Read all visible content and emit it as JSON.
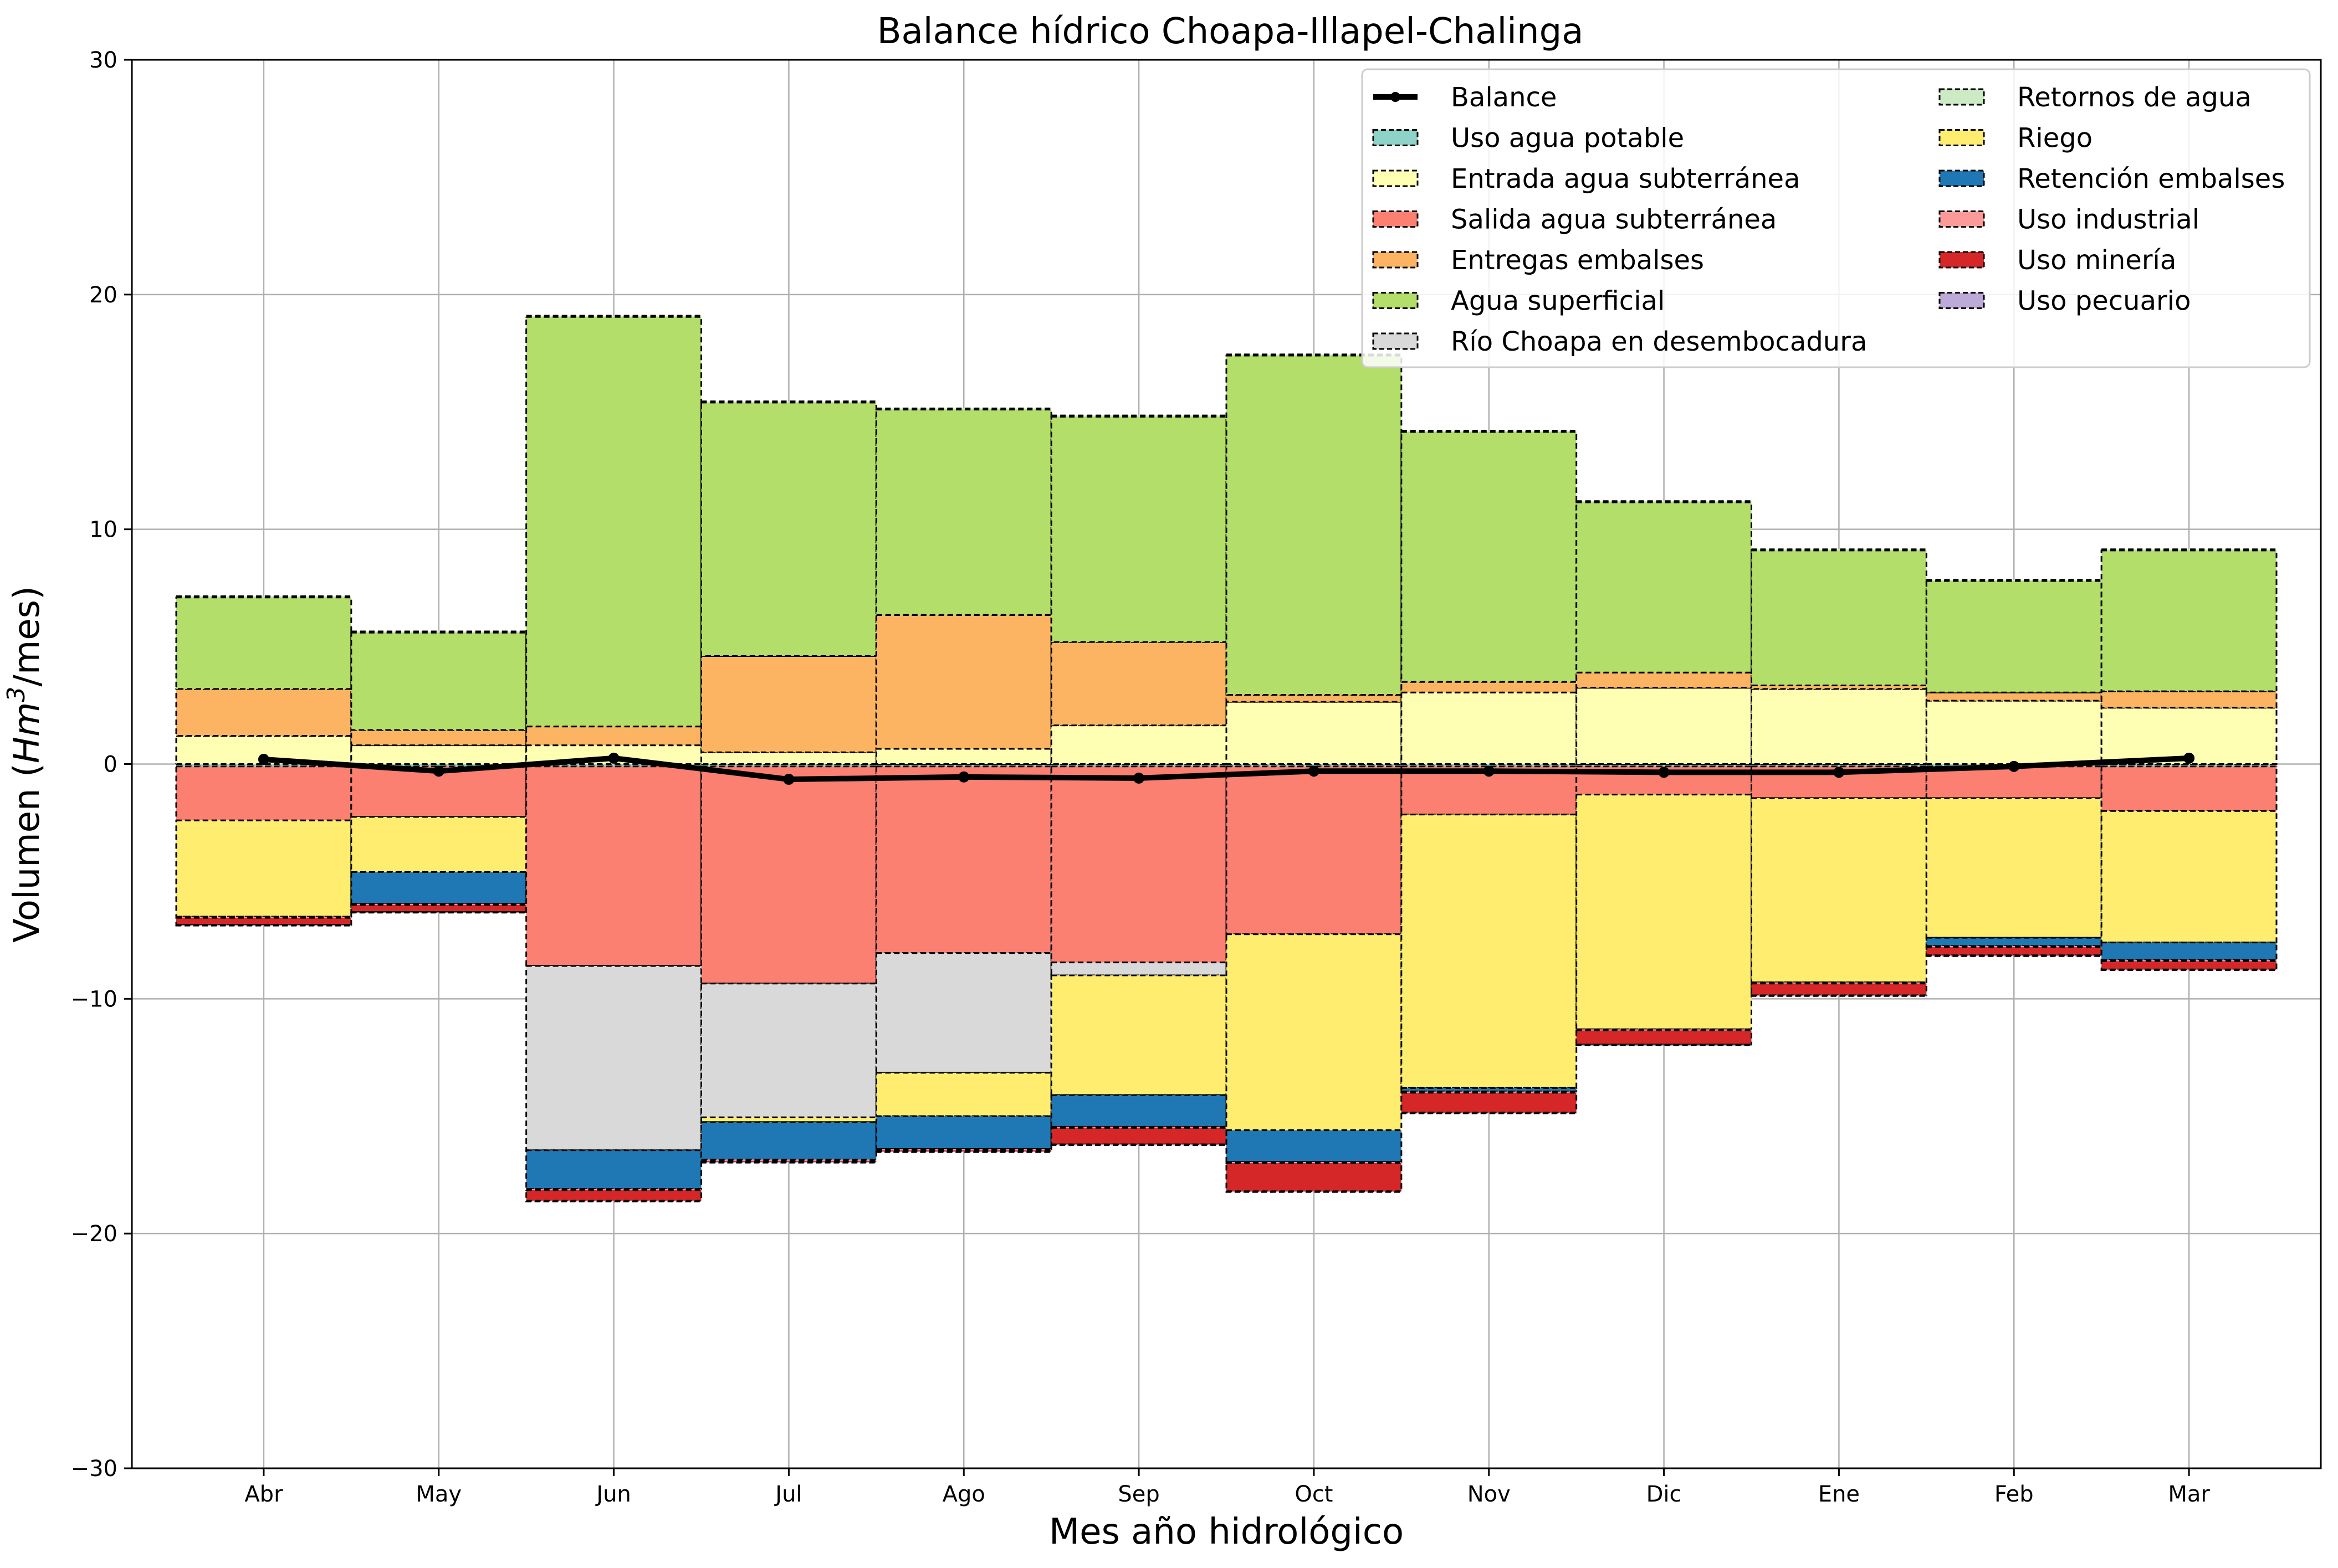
{
  "chart_data": {
    "type": "bar",
    "stacked": true,
    "title": "Balance hídrico Choapa-Illapel-Chalinga",
    "xlabel": "Mes año hidrológico",
    "ylabel_prefix": "Volumen (",
    "ylabel_var": "Hm",
    "ylabel_sup": "3",
    "ylabel_suffix": "/mes)",
    "ylim": [
      -30,
      30
    ],
    "yticks": [
      -30,
      -20,
      -10,
      0,
      10,
      20,
      30
    ],
    "ytick_labels": [
      "−30",
      "−20",
      "−10",
      "0",
      "10",
      "20",
      "30"
    ],
    "grid": true,
    "legend_position": "top-right",
    "categories": [
      "Abr",
      "May",
      "Jun",
      "Jul",
      "Ago",
      "Sep",
      "Oct",
      "Nov",
      "Dic",
      "Ene",
      "Feb",
      "Mar"
    ],
    "balance": {
      "name": "Balance",
      "color": "#000000",
      "values": [
        0.2,
        -0.3,
        0.25,
        -0.65,
        -0.55,
        -0.6,
        -0.3,
        -0.3,
        -0.35,
        -0.35,
        -0.1,
        0.25
      ]
    },
    "series": [
      {
        "name": "Uso agua potable",
        "color": "#8dd3c7",
        "values": [
          -0.1,
          -0.1,
          -0.1,
          -0.1,
          -0.1,
          -0.1,
          -0.1,
          -0.1,
          -0.1,
          -0.1,
          -0.1,
          -0.1
        ]
      },
      {
        "name": "Entrada agua subterránea",
        "color": "#ffffb3",
        "values": [
          1.2,
          0.8,
          0.8,
          0.5,
          0.65,
          1.65,
          2.65,
          3.05,
          3.25,
          3.2,
          2.7,
          2.4
        ]
      },
      {
        "name": "Salida agua subterránea",
        "color": "#fb8072",
        "values": [
          -2.3,
          -2.15,
          -8.5,
          -9.25,
          -7.95,
          -8.35,
          -7.15,
          -2.05,
          -1.2,
          -1.35,
          -1.35,
          -1.9
        ]
      },
      {
        "name": "Entregas embalses",
        "color": "#fdb462",
        "values": [
          2.0,
          0.65,
          0.8,
          4.1,
          5.7,
          3.55,
          0.3,
          0.45,
          0.65,
          0.15,
          0.35,
          0.7
        ]
      },
      {
        "name": "Agua superficial",
        "color": "#b3de69",
        "values": [
          3.9,
          4.15,
          17.45,
          10.8,
          8.75,
          9.6,
          14.45,
          10.65,
          7.25,
          5.75,
          4.75,
          6.0
        ]
      },
      {
        "name": "Río Choapa en desembocadura",
        "color": "#d9d9d9",
        "values": [
          0,
          0,
          -7.85,
          -5.7,
          -5.1,
          -0.55,
          0,
          0,
          0,
          0,
          0,
          0
        ]
      },
      {
        "name": "Retornos de agua",
        "color": "#ccebc5",
        "values": [
          0.05,
          0.05,
          0.05,
          0.05,
          0.05,
          0.05,
          0.05,
          0.05,
          0.05,
          0.05,
          0.05,
          0.05
        ]
      },
      {
        "name": "Riego",
        "color": "#ffed6f",
        "values": [
          -4.1,
          -2.35,
          0,
          -0.2,
          -1.85,
          -5.1,
          -8.35,
          -11.65,
          -10.0,
          -7.85,
          -5.95,
          -5.6
        ]
      },
      {
        "name": "Retención embalses",
        "color": "#1f78b4",
        "values": [
          0,
          -1.35,
          -1.65,
          -1.6,
          -1.4,
          -1.35,
          -1.35,
          -0.15,
          0,
          0,
          -0.35,
          -0.75
        ]
      },
      {
        "name": "Uso industrial",
        "color": "#fb9a99",
        "values": [
          -0.05,
          -0.05,
          -0.05,
          -0.05,
          -0.05,
          -0.05,
          -0.05,
          -0.05,
          -0.05,
          -0.05,
          -0.05,
          -0.05
        ]
      },
      {
        "name": "Uso minería",
        "color": "#d62728",
        "values": [
          -0.3,
          -0.3,
          -0.45,
          -0.05,
          -0.05,
          -0.7,
          -1.2,
          -0.85,
          -0.6,
          -0.5,
          -0.35,
          -0.35
        ]
      },
      {
        "name": "Uso pecuario",
        "color": "#bcaad8",
        "values": [
          -0.03,
          -0.03,
          -0.03,
          -0.03,
          -0.03,
          -0.03,
          -0.03,
          -0.03,
          -0.03,
          -0.03,
          -0.03,
          -0.03
        ]
      }
    ]
  }
}
